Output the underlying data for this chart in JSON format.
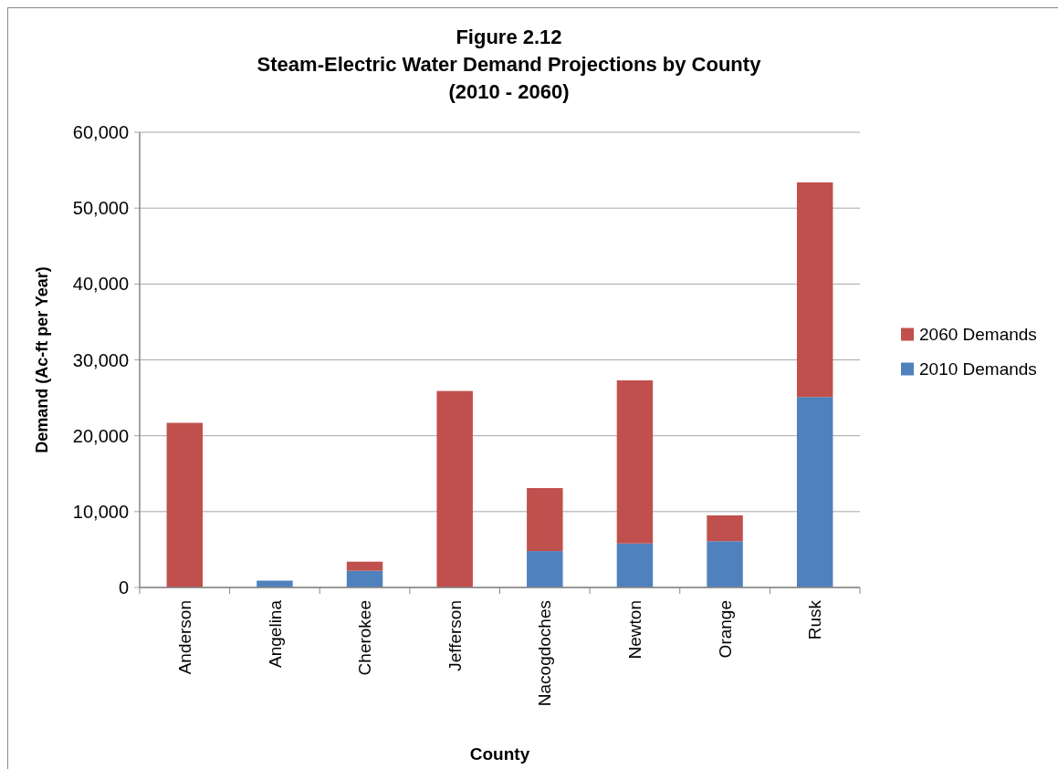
{
  "chart_data": {
    "type": "bar",
    "title": "Figure 2.12\nSteam-Electric Water Demand Projections by County\n(2010 - 2060)",
    "xlabel": "County",
    "ylabel": "Demand (Ac-ft per Year)",
    "categories": [
      "Anderson",
      "Angelina",
      "Cherokee",
      "Jefferson",
      "Nacogdoches",
      "Newton",
      "Orange",
      "Rusk"
    ],
    "series": [
      {
        "name": "2010 Demands",
        "color": "#4f81bd",
        "values": [
          0,
          900,
          2200,
          0,
          4800,
          5800,
          6100,
          25100
        ]
      },
      {
        "name": "2060 Demands",
        "color": "#c0504d",
        "values": [
          21700,
          0,
          1200,
          25900,
          8300,
          21500,
          3400,
          28300
        ]
      }
    ],
    "stacked": true,
    "ylim": [
      0,
      60000
    ],
    "yticks": [
      {
        "value": 0,
        "label": "0"
      },
      {
        "value": 10000,
        "label": "10,000"
      },
      {
        "value": 20000,
        "label": "20,000"
      },
      {
        "value": 30000,
        "label": "30,000"
      },
      {
        "value": 40000,
        "label": "40,000"
      },
      {
        "value": 50000,
        "label": "50,000"
      },
      {
        "value": 60000,
        "label": "60,000"
      }
    ],
    "grid": "y",
    "legend": "right"
  }
}
